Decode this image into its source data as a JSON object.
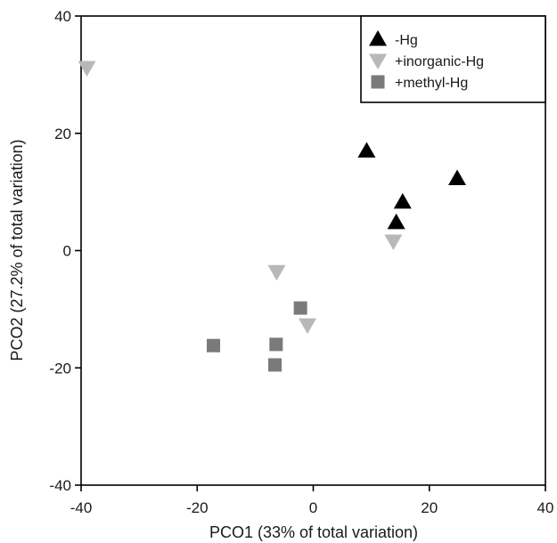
{
  "chart_data": {
    "type": "scatter",
    "title": "",
    "xlabel": "PCO1 (33% of total variation)",
    "ylabel": "PCO2 (27.2% of total variation)",
    "xlim": [
      -40,
      40
    ],
    "ylim": [
      -40,
      40
    ],
    "xticks": [
      -40,
      -20,
      0,
      20,
      40
    ],
    "yticks": [
      40,
      20,
      0,
      -20,
      -40
    ],
    "grid": false,
    "legend_position": "top-right",
    "series": [
      {
        "name": "-Hg",
        "marker": "triangle-up",
        "color": "#000000",
        "points": [
          {
            "x": 9.2,
            "y": 17.0
          },
          {
            "x": 15.4,
            "y": 8.3
          },
          {
            "x": 14.3,
            "y": 4.8
          },
          {
            "x": 24.8,
            "y": 12.3
          }
        ]
      },
      {
        "name": "+inorganic-Hg",
        "marker": "triangle-down",
        "color": "#b8b8b8",
        "points": [
          {
            "x": -39.0,
            "y": 31.2
          },
          {
            "x": -6.3,
            "y": -3.6
          },
          {
            "x": -1.0,
            "y": -12.7
          },
          {
            "x": 13.8,
            "y": 1.6
          }
        ]
      },
      {
        "name": "+methyl-Hg",
        "marker": "square",
        "color": "#7a7a7a",
        "points": [
          {
            "x": -17.2,
            "y": -16.2
          },
          {
            "x": -6.4,
            "y": -16.0
          },
          {
            "x": -6.6,
            "y": -19.5
          },
          {
            "x": -2.2,
            "y": -9.8
          }
        ]
      }
    ]
  }
}
